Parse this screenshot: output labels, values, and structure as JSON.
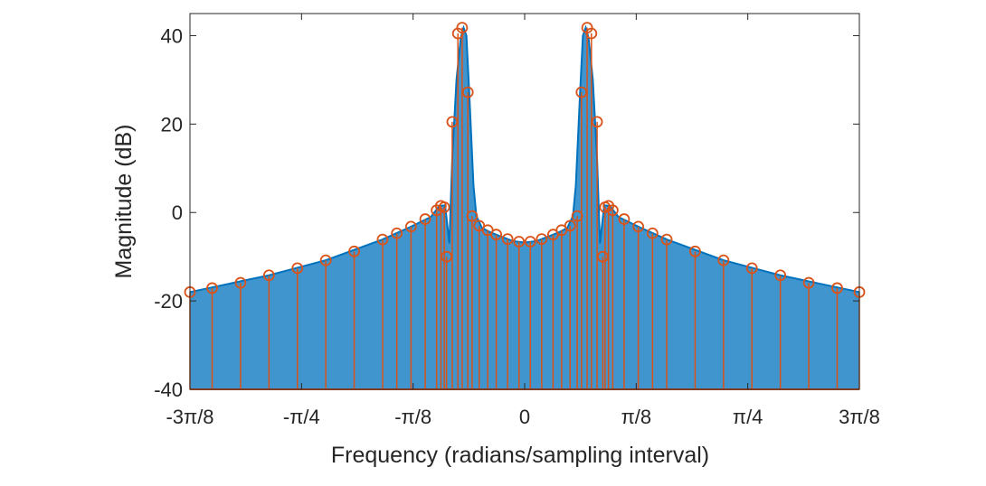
{
  "chart_data": {
    "type": "stem",
    "xlabel": "Frequency (radians/sampling interval)",
    "ylabel": "Magnitude (dB)",
    "xlim": [
      -1.1781,
      1.1781
    ],
    "ylim": [
      -40,
      45
    ],
    "grid": false,
    "x_ticks": [
      {
        "value": -1.1781,
        "label": "-3π/8"
      },
      {
        "value": -0.7854,
        "label": "-π/4"
      },
      {
        "value": -0.3927,
        "label": "-π/8"
      },
      {
        "value": 0,
        "label": "0"
      },
      {
        "value": 0.3927,
        "label": "π/8"
      },
      {
        "value": 0.7854,
        "label": "π/4"
      },
      {
        "value": 1.1781,
        "label": "3π/8"
      }
    ],
    "y_ticks": [
      {
        "value": -40,
        "label": "-40"
      },
      {
        "value": -20,
        "label": "-20"
      },
      {
        "value": 0,
        "label": "0"
      },
      {
        "value": 20,
        "label": "20"
      },
      {
        "value": 40,
        "label": "40"
      }
    ],
    "colors": {
      "continuous": "#0072BD",
      "sampled": "#D95319",
      "axis": "#262626"
    },
    "series": [
      {
        "kind": "continuous-line",
        "color": "#0072BD",
        "baseline": -40,
        "points": [
          {
            "x": -1.1781,
            "y": -18.0
          },
          {
            "x": -0.9,
            "y": -14.2
          },
          {
            "x": -0.7,
            "y": -10.8
          },
          {
            "x": -0.5,
            "y": -6.1
          },
          {
            "x": -0.4,
            "y": -3.2
          },
          {
            "x": -0.33,
            "y": -1.0
          },
          {
            "x": -0.3,
            "y": 1.5
          },
          {
            "x": -0.28,
            "y": 1.6
          },
          {
            "x": -0.265,
            "y": -7.0
          },
          {
            "x": -0.255,
            "y": 12.0
          },
          {
            "x": -0.24,
            "y": 30.0
          },
          {
            "x": -0.225,
            "y": 39.5
          },
          {
            "x": -0.215,
            "y": 41.8
          },
          {
            "x": -0.205,
            "y": 40.0
          },
          {
            "x": -0.195,
            "y": 27.0
          },
          {
            "x": -0.18,
            "y": 6.0
          },
          {
            "x": -0.17,
            "y": -0.8
          },
          {
            "x": -0.15,
            "y": -3.5
          },
          {
            "x": -0.12,
            "y": -4.5
          },
          {
            "x": -0.08,
            "y": -5.5
          },
          {
            "x": -0.04,
            "y": -6.5
          },
          {
            "x": 0,
            "y": -6.8
          },
          {
            "x": 0.04,
            "y": -6.5
          },
          {
            "x": 0.08,
            "y": -5.5
          },
          {
            "x": 0.12,
            "y": -4.5
          },
          {
            "x": 0.15,
            "y": -3.5
          },
          {
            "x": 0.17,
            "y": -0.8
          },
          {
            "x": 0.18,
            "y": 6.0
          },
          {
            "x": 0.195,
            "y": 27.0
          },
          {
            "x": 0.205,
            "y": 40.0
          },
          {
            "x": 0.215,
            "y": 41.8
          },
          {
            "x": 0.225,
            "y": 39.5
          },
          {
            "x": 0.24,
            "y": 30.0
          },
          {
            "x": 0.255,
            "y": 12.0
          },
          {
            "x": 0.265,
            "y": -7.0
          },
          {
            "x": 0.28,
            "y": 1.6
          },
          {
            "x": 0.3,
            "y": 1.5
          },
          {
            "x": 0.33,
            "y": -1.0
          },
          {
            "x": 0.4,
            "y": -3.2
          },
          {
            "x": 0.5,
            "y": -6.1
          },
          {
            "x": 0.7,
            "y": -10.8
          },
          {
            "x": 0.9,
            "y": -14.2
          },
          {
            "x": 1.1781,
            "y": -18.0
          }
        ]
      },
      {
        "kind": "stem",
        "color": "#D95319",
        "baseline": -40,
        "marker": "circle",
        "points": [
          {
            "x": -1.1781,
            "y": -18.0
          },
          {
            "x": -1.1,
            "y": -17.1
          },
          {
            "x": -1.0,
            "y": -15.9
          },
          {
            "x": -0.9,
            "y": -14.2
          },
          {
            "x": -0.8,
            "y": -12.6
          },
          {
            "x": -0.7,
            "y": -10.8
          },
          {
            "x": -0.6,
            "y": -8.8
          },
          {
            "x": -0.5,
            "y": -6.1
          },
          {
            "x": -0.45,
            "y": -4.7
          },
          {
            "x": -0.4,
            "y": -3.2
          },
          {
            "x": -0.35,
            "y": -1.5
          },
          {
            "x": -0.31,
            "y": 0.5
          },
          {
            "x": -0.295,
            "y": 1.5
          },
          {
            "x": -0.283,
            "y": 1.2
          },
          {
            "x": -0.275,
            "y": -10.0
          },
          {
            "x": -0.255,
            "y": 20.5
          },
          {
            "x": -0.235,
            "y": 40.5
          },
          {
            "x": -0.22,
            "y": 41.8
          },
          {
            "x": -0.2,
            "y": 27.2
          },
          {
            "x": -0.185,
            "y": -0.8
          },
          {
            "x": -0.16,
            "y": -3.0
          },
          {
            "x": -0.13,
            "y": -4.0
          },
          {
            "x": -0.1,
            "y": -5.0
          },
          {
            "x": -0.06,
            "y": -6.0
          },
          {
            "x": -0.02,
            "y": -6.6
          },
          {
            "x": 0.02,
            "y": -6.6
          },
          {
            "x": 0.06,
            "y": -6.0
          },
          {
            "x": 0.1,
            "y": -5.0
          },
          {
            "x": 0.13,
            "y": -4.0
          },
          {
            "x": 0.16,
            "y": -3.0
          },
          {
            "x": 0.185,
            "y": -0.8
          },
          {
            "x": 0.2,
            "y": 27.2
          },
          {
            "x": 0.22,
            "y": 41.8
          },
          {
            "x": 0.235,
            "y": 40.5
          },
          {
            "x": 0.255,
            "y": 20.5
          },
          {
            "x": 0.275,
            "y": -10.0
          },
          {
            "x": 0.283,
            "y": 1.2
          },
          {
            "x": 0.295,
            "y": 1.5
          },
          {
            "x": 0.31,
            "y": 0.5
          },
          {
            "x": 0.35,
            "y": -1.5
          },
          {
            "x": 0.4,
            "y": -3.2
          },
          {
            "x": 0.45,
            "y": -4.7
          },
          {
            "x": 0.5,
            "y": -6.1
          },
          {
            "x": 0.6,
            "y": -8.8
          },
          {
            "x": 0.7,
            "y": -10.8
          },
          {
            "x": 0.8,
            "y": -12.6
          },
          {
            "x": 0.9,
            "y": -14.2
          },
          {
            "x": 1.0,
            "y": -15.9
          },
          {
            "x": 1.1,
            "y": -17.1
          },
          {
            "x": 1.1781,
            "y": -18.0
          }
        ]
      }
    ]
  }
}
